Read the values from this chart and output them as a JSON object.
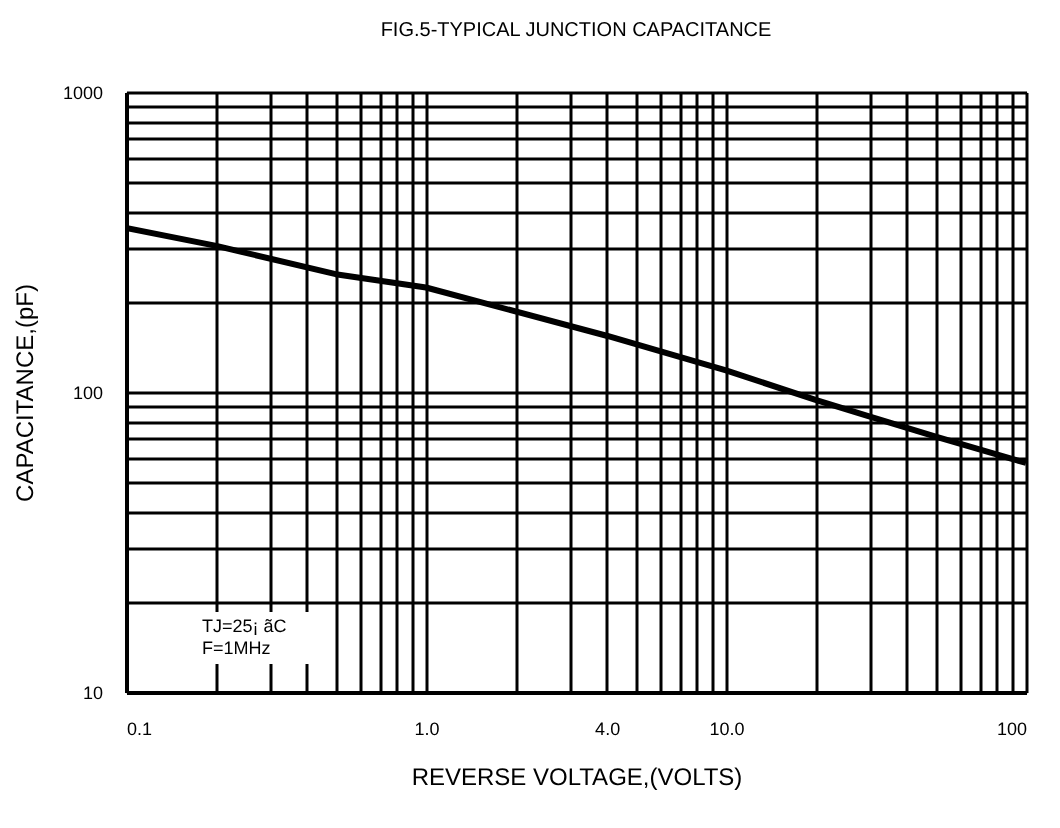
{
  "chart_data": {
    "type": "line",
    "title": "FIG.5-TYPICAL JUNCTION CAPACITANCE",
    "xlabel": "REVERSE VOLTAGE,(VOLTS)",
    "ylabel": "CAPACITANCE,(pF)",
    "annotations": [
      "TJ=25¡ ãC",
      "F=1MHz"
    ],
    "series": [
      {
        "color": "#000000",
        "x": [
          0.1,
          0.2,
          0.5,
          1.0,
          1.5,
          4,
          10,
          20,
          30,
          50,
          100
        ],
        "values": [
          352,
          307,
          247,
          223,
          200,
          154,
          118,
          94,
          83,
          71,
          58
        ]
      }
    ],
    "xlim": [
      0.1,
      100
    ],
    "ylim": [
      10,
      1000
    ],
    "log": "xy",
    "grid": true,
    "line_style": "solid",
    "marker": "none",
    "xticks": [
      {
        "value": 0.1,
        "label": "0.1"
      },
      {
        "value": 0.2,
        "label": null
      },
      {
        "value": 0.3,
        "label": null
      },
      {
        "value": 0.4,
        "label": null
      },
      {
        "value": 0.5,
        "label": null
      },
      {
        "value": 0.6,
        "label": null
      },
      {
        "value": 0.7,
        "label": null
      },
      {
        "value": 0.8,
        "label": null
      },
      {
        "value": 0.9,
        "label": null
      },
      {
        "value": 1,
        "label": "1.0"
      },
      {
        "value": 2,
        "label": null
      },
      {
        "value": 3,
        "label": null
      },
      {
        "value": 4,
        "label": "4.0"
      },
      {
        "value": 5,
        "label": null
      },
      {
        "value": 6,
        "label": null
      },
      {
        "value": 7,
        "label": null
      },
      {
        "value": 8,
        "label": null
      },
      {
        "value": 9,
        "label": null
      },
      {
        "value": 10,
        "label": "10.0"
      },
      {
        "value": 20,
        "label": null
      },
      {
        "value": 30,
        "label": null
      },
      {
        "value": 40,
        "label": null
      },
      {
        "value": 50,
        "label": null
      },
      {
        "value": 60,
        "label": null
      },
      {
        "value": 70,
        "label": null
      },
      {
        "value": 80,
        "label": null
      },
      {
        "value": 90,
        "label": null
      },
      100
    ],
    "yticks": [
      10,
      {
        "value": 20,
        "label": null
      },
      {
        "value": 30,
        "label": null
      },
      {
        "value": 40,
        "label": null
      },
      {
        "value": 50,
        "label": null
      },
      {
        "value": 60,
        "label": null
      },
      {
        "value": 70,
        "label": null
      },
      {
        "value": 80,
        "label": null
      },
      {
        "value": 90,
        "label": null
      },
      100,
      {
        "value": 200,
        "label": null
      },
      {
        "value": 300,
        "label": null
      },
      {
        "value": 400,
        "label": null
      },
      {
        "value": 500,
        "label": null
      },
      {
        "value": 600,
        "label": null
      },
      {
        "value": 700,
        "label": null
      },
      {
        "value": 800,
        "label": null
      },
      {
        "value": 900,
        "label": null
      },
      1000
    ]
  }
}
